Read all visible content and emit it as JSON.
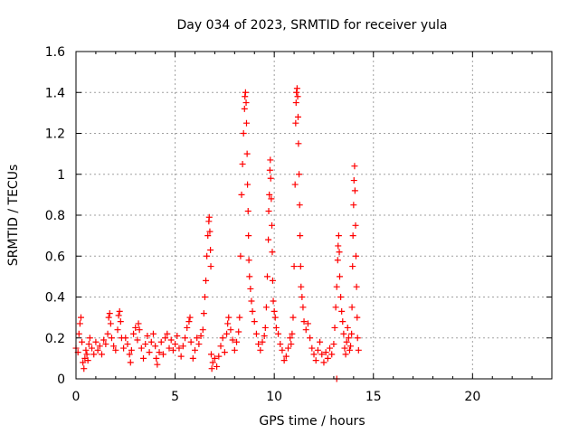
{
  "chart_data": {
    "type": "scatter",
    "title": "Day 034 of 2023, SRMTID for receiver yula",
    "xlabel": "GPS time / hours",
    "ylabel": "SRMTID / TECUs",
    "xlim": [
      0,
      24
    ],
    "ylim": [
      0,
      1.6
    ],
    "x_ticks": [
      0,
      5,
      10,
      15,
      20
    ],
    "x_tick_labels": [
      "0",
      "5",
      "10",
      "15",
      "20"
    ],
    "y_ticks": [
      0,
      0.2,
      0.4,
      0.6,
      0.8,
      1.0,
      1.2,
      1.4,
      1.6
    ],
    "y_tick_labels": [
      "0",
      "0.2",
      "0.4",
      "0.6",
      "0.8",
      "1",
      "1.2",
      "1.4",
      "1.6"
    ],
    "grid": true,
    "marker": "+",
    "marker_color": "#ff0000",
    "series": [
      {
        "name": "SRMTID",
        "points": [
          [
            0.0,
            0.15
          ],
          [
            0.1,
            0.13
          ],
          [
            0.15,
            0.22
          ],
          [
            0.2,
            0.27
          ],
          [
            0.25,
            0.3
          ],
          [
            0.3,
            0.18
          ],
          [
            0.35,
            0.08
          ],
          [
            0.4,
            0.05
          ],
          [
            0.45,
            0.1
          ],
          [
            0.5,
            0.14
          ],
          [
            0.55,
            0.12
          ],
          [
            0.6,
            0.09
          ],
          [
            0.65,
            0.17
          ],
          [
            0.7,
            0.2
          ],
          [
            0.8,
            0.15
          ],
          [
            0.9,
            0.12
          ],
          [
            1.0,
            0.18
          ],
          [
            1.1,
            0.14
          ],
          [
            1.2,
            0.16
          ],
          [
            1.3,
            0.12
          ],
          [
            1.4,
            0.19
          ],
          [
            1.5,
            0.17
          ],
          [
            1.6,
            0.22
          ],
          [
            1.65,
            0.3
          ],
          [
            1.7,
            0.32
          ],
          [
            1.75,
            0.27
          ],
          [
            1.8,
            0.2
          ],
          [
            1.9,
            0.16
          ],
          [
            2.0,
            0.14
          ],
          [
            2.1,
            0.24
          ],
          [
            2.15,
            0.31
          ],
          [
            2.2,
            0.33
          ],
          [
            2.25,
            0.28
          ],
          [
            2.3,
            0.2
          ],
          [
            2.4,
            0.15
          ],
          [
            2.5,
            0.2
          ],
          [
            2.6,
            0.17
          ],
          [
            2.7,
            0.12
          ],
          [
            2.75,
            0.08
          ],
          [
            2.8,
            0.14
          ],
          [
            2.9,
            0.22
          ],
          [
            3.0,
            0.25
          ],
          [
            3.1,
            0.19
          ],
          [
            3.15,
            0.27
          ],
          [
            3.2,
            0.24
          ],
          [
            3.3,
            0.15
          ],
          [
            3.4,
            0.1
          ],
          [
            3.5,
            0.17
          ],
          [
            3.6,
            0.21
          ],
          [
            3.7,
            0.13
          ],
          [
            3.8,
            0.18
          ],
          [
            3.9,
            0.22
          ],
          [
            4.0,
            0.16
          ],
          [
            4.05,
            0.1
          ],
          [
            4.1,
            0.07
          ],
          [
            4.2,
            0.13
          ],
          [
            4.3,
            0.18
          ],
          [
            4.4,
            0.12
          ],
          [
            4.5,
            0.2
          ],
          [
            4.6,
            0.22
          ],
          [
            4.7,
            0.15
          ],
          [
            4.8,
            0.19
          ],
          [
            4.9,
            0.14
          ],
          [
            5.0,
            0.17
          ],
          [
            5.1,
            0.21
          ],
          [
            5.2,
            0.15
          ],
          [
            5.3,
            0.11
          ],
          [
            5.4,
            0.16
          ],
          [
            5.5,
            0.2
          ],
          [
            5.6,
            0.25
          ],
          [
            5.7,
            0.28
          ],
          [
            5.75,
            0.3
          ],
          [
            5.8,
            0.18
          ],
          [
            5.9,
            0.1
          ],
          [
            6.0,
            0.14
          ],
          [
            6.1,
            0.2
          ],
          [
            6.2,
            0.17
          ],
          [
            6.3,
            0.21
          ],
          [
            6.4,
            0.24
          ],
          [
            6.45,
            0.32
          ],
          [
            6.5,
            0.4
          ],
          [
            6.55,
            0.48
          ],
          [
            6.6,
            0.6
          ],
          [
            6.65,
            0.7
          ],
          [
            6.7,
            0.77
          ],
          [
            6.72,
            0.79
          ],
          [
            6.75,
            0.72
          ],
          [
            6.78,
            0.63
          ],
          [
            6.8,
            0.55
          ],
          [
            6.82,
            0.12
          ],
          [
            6.85,
            0.05
          ],
          [
            6.9,
            0.08
          ],
          [
            7.0,
            0.1
          ],
          [
            7.1,
            0.06
          ],
          [
            7.2,
            0.11
          ],
          [
            7.3,
            0.16
          ],
          [
            7.4,
            0.2
          ],
          [
            7.5,
            0.13
          ],
          [
            7.6,
            0.22
          ],
          [
            7.65,
            0.27
          ],
          [
            7.7,
            0.3
          ],
          [
            7.8,
            0.24
          ],
          [
            7.9,
            0.19
          ],
          [
            8.0,
            0.14
          ],
          [
            8.1,
            0.18
          ],
          [
            8.2,
            0.23
          ],
          [
            8.25,
            0.3
          ],
          [
            8.3,
            0.6
          ],
          [
            8.35,
            0.9
          ],
          [
            8.4,
            1.05
          ],
          [
            8.45,
            1.2
          ],
          [
            8.5,
            1.32
          ],
          [
            8.52,
            1.38
          ],
          [
            8.55,
            1.4
          ],
          [
            8.58,
            1.35
          ],
          [
            8.6,
            1.25
          ],
          [
            8.63,
            1.1
          ],
          [
            8.65,
            0.95
          ],
          [
            8.68,
            0.82
          ],
          [
            8.7,
            0.7
          ],
          [
            8.72,
            0.58
          ],
          [
            8.75,
            0.5
          ],
          [
            8.8,
            0.44
          ],
          [
            8.85,
            0.38
          ],
          [
            8.9,
            0.33
          ],
          [
            9.0,
            0.28
          ],
          [
            9.1,
            0.22
          ],
          [
            9.2,
            0.17
          ],
          [
            9.3,
            0.14
          ],
          [
            9.4,
            0.18
          ],
          [
            9.5,
            0.21
          ],
          [
            9.55,
            0.25
          ],
          [
            9.6,
            0.35
          ],
          [
            9.65,
            0.5
          ],
          [
            9.7,
            0.68
          ],
          [
            9.72,
            0.82
          ],
          [
            9.75,
            0.9
          ],
          [
            9.78,
            1.02
          ],
          [
            9.8,
            1.07
          ],
          [
            9.82,
            0.98
          ],
          [
            9.85,
            0.88
          ],
          [
            9.88,
            0.75
          ],
          [
            9.9,
            0.62
          ],
          [
            9.92,
            0.48
          ],
          [
            9.95,
            0.38
          ],
          [
            10.0,
            0.33
          ],
          [
            10.05,
            0.3
          ],
          [
            10.1,
            0.25
          ],
          [
            10.2,
            0.22
          ],
          [
            10.3,
            0.17
          ],
          [
            10.4,
            0.14
          ],
          [
            10.5,
            0.09
          ],
          [
            10.6,
            0.11
          ],
          [
            10.7,
            0.15
          ],
          [
            10.8,
            0.2
          ],
          [
            10.85,
            0.17
          ],
          [
            10.9,
            0.22
          ],
          [
            10.95,
            0.3
          ],
          [
            11.0,
            0.55
          ],
          [
            11.05,
            0.95
          ],
          [
            11.08,
            1.25
          ],
          [
            11.1,
            1.35
          ],
          [
            11.12,
            1.4
          ],
          [
            11.15,
            1.42
          ],
          [
            11.18,
            1.38
          ],
          [
            11.2,
            1.28
          ],
          [
            11.22,
            1.15
          ],
          [
            11.25,
            1.0
          ],
          [
            11.28,
            0.85
          ],
          [
            11.3,
            0.7
          ],
          [
            11.33,
            0.55
          ],
          [
            11.35,
            0.45
          ],
          [
            11.4,
            0.4
          ],
          [
            11.45,
            0.35
          ],
          [
            11.5,
            0.28
          ],
          [
            11.6,
            0.24
          ],
          [
            11.7,
            0.27
          ],
          [
            11.8,
            0.2
          ],
          [
            11.9,
            0.15
          ],
          [
            12.0,
            0.12
          ],
          [
            12.1,
            0.09
          ],
          [
            12.2,
            0.14
          ],
          [
            12.3,
            0.18
          ],
          [
            12.4,
            0.12
          ],
          [
            12.5,
            0.08
          ],
          [
            12.6,
            0.13
          ],
          [
            12.7,
            0.1
          ],
          [
            12.8,
            0.15
          ],
          [
            12.9,
            0.12
          ],
          [
            13.0,
            0.17
          ],
          [
            13.05,
            0.25
          ],
          [
            13.1,
            0.35
          ],
          [
            13.15,
            0.45
          ],
          [
            13.2,
            0.58
          ],
          [
            13.22,
            0.65
          ],
          [
            13.25,
            0.7
          ],
          [
            13.28,
            0.62
          ],
          [
            13.3,
            0.5
          ],
          [
            13.35,
            0.4
          ],
          [
            13.4,
            0.33
          ],
          [
            13.45,
            0.28
          ],
          [
            13.5,
            0.22
          ],
          [
            13.55,
            0.15
          ],
          [
            13.6,
            0.12
          ],
          [
            13.65,
            0.18
          ],
          [
            13.7,
            0.25
          ],
          [
            13.75,
            0.2
          ],
          [
            13.8,
            0.14
          ],
          [
            13.85,
            0.16
          ],
          [
            13.9,
            0.22
          ],
          [
            13.92,
            0.35
          ],
          [
            13.95,
            0.55
          ],
          [
            13.97,
            0.7
          ],
          [
            14.0,
            0.85
          ],
          [
            14.02,
            0.97
          ],
          [
            14.05,
            1.04
          ],
          [
            14.07,
            0.92
          ],
          [
            14.1,
            0.75
          ],
          [
            14.12,
            0.6
          ],
          [
            14.15,
            0.45
          ],
          [
            14.18,
            0.3
          ],
          [
            14.2,
            0.2
          ],
          [
            14.25,
            0.14
          ],
          [
            13.15,
            0.0
          ]
        ]
      }
    ]
  }
}
